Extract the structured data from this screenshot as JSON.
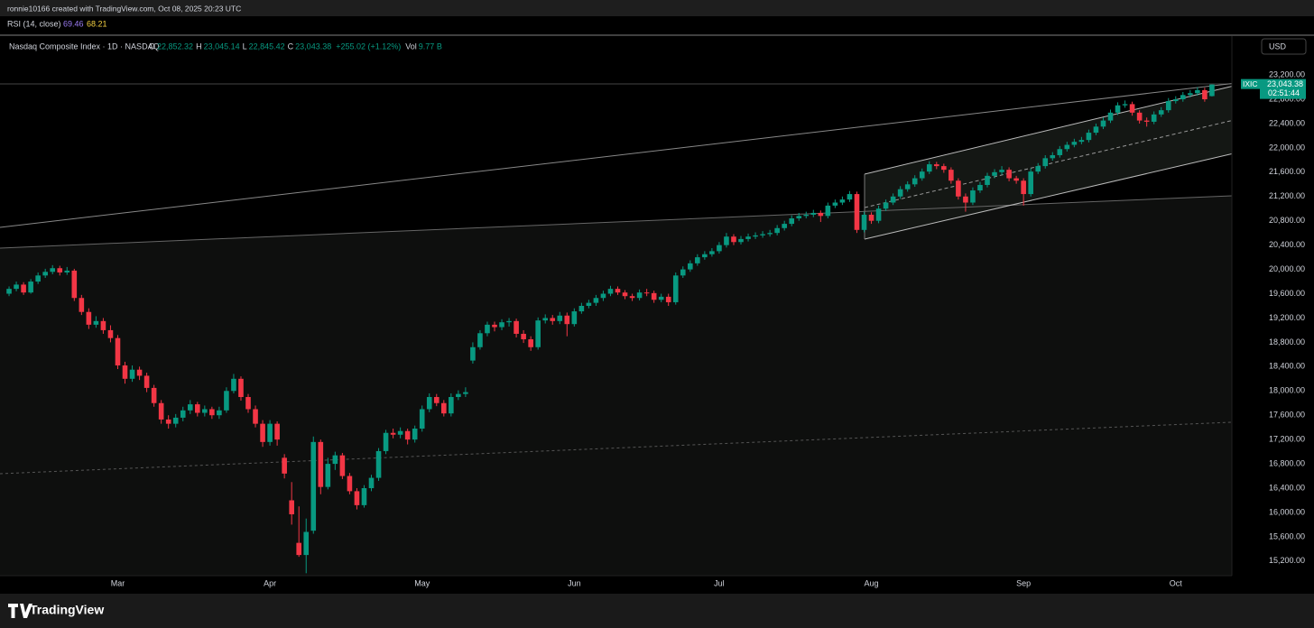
{
  "header": {
    "credit": "ronnie10166 created with TradingView.com, Oct 08, 2025 20:23 UTC"
  },
  "rsi": {
    "label": "RSI (14, close)",
    "values": [
      "69.46",
      "68.21"
    ]
  },
  "legend": {
    "symbol": "Nasdaq Composite Index · 1D · NASDAQ",
    "fields": [
      {
        "key": "O",
        "text": "22,852.32"
      },
      {
        "key": "H",
        "text": "23,045.14"
      },
      {
        "key": "L",
        "text": "22,845.42"
      },
      {
        "key": "C",
        "text": "23,043.38"
      }
    ],
    "change": "+255.02 (+1.12%)",
    "volume_key": "Vol",
    "volume": "9.77 B"
  },
  "currency": "USD",
  "price_tag": {
    "ticker": "IXIC",
    "price": "23,043.38",
    "countdown": "02:51:44"
  },
  "footer": {
    "brand": "TradingView"
  },
  "chart_data": {
    "type": "candlestick",
    "up_color": "#089981",
    "down_color": "#f23645",
    "xlim": [
      -1.25,
      168.75
    ],
    "xticks": [
      {
        "value": 15,
        "label": "Mar"
      },
      {
        "value": 36,
        "label": "Apr"
      },
      {
        "value": 57,
        "label": "May"
      },
      {
        "value": 78,
        "label": "Jun"
      },
      {
        "value": 98,
        "label": "Jul"
      },
      {
        "value": 119,
        "label": "Aug"
      },
      {
        "value": 140,
        "label": "Sep"
      },
      {
        "value": 161,
        "label": "Oct"
      }
    ],
    "ylim": [
      14960,
      23810
    ],
    "yticks": [
      {
        "value": 15200,
        "label": "15,200.00"
      },
      {
        "value": 15600,
        "label": "15,600.00"
      },
      {
        "value": 16000,
        "label": "16,000.00"
      },
      {
        "value": 16400,
        "label": "16,400.00"
      },
      {
        "value": 16800,
        "label": "16,800.00"
      },
      {
        "value": 17200,
        "label": "17,200.00"
      },
      {
        "value": 17600,
        "label": "17,600.00"
      },
      {
        "value": 18000,
        "label": "18,000.00"
      },
      {
        "value": 18400,
        "label": "18,400.00"
      },
      {
        "value": 18800,
        "label": "18,800.00"
      },
      {
        "value": 19200,
        "label": "19,200.00"
      },
      {
        "value": 19600,
        "label": "19,600.00"
      },
      {
        "value": 20000,
        "label": "20,000.00"
      },
      {
        "value": 20400,
        "label": "20,400.00"
      },
      {
        "value": 20800,
        "label": "20,800.00"
      },
      {
        "value": 21200,
        "label": "21,200.00"
      },
      {
        "value": 21600,
        "label": "21,600.00"
      },
      {
        "value": 22000,
        "label": "22,000.00"
      },
      {
        "value": 22400,
        "label": "22,400.00"
      },
      {
        "value": 22800,
        "label": "22,800.00"
      },
      {
        "value": 23200,
        "label": "23,200.00"
      }
    ],
    "ohlc": [
      [
        19600,
        19720,
        19560,
        19680
      ],
      [
        19680,
        19800,
        19640,
        19750
      ],
      [
        19750,
        19790,
        19580,
        19620
      ],
      [
        19620,
        19840,
        19600,
        19800
      ],
      [
        19800,
        19950,
        19760,
        19900
      ],
      [
        19900,
        20010,
        19860,
        19960
      ],
      [
        19960,
        20070,
        19920,
        20020
      ],
      [
        20020,
        20060,
        19900,
        19950
      ],
      [
        19950,
        20040,
        19910,
        19980
      ],
      [
        19980,
        20010,
        19480,
        19530
      ],
      [
        19530,
        19580,
        19250,
        19300
      ],
      [
        19300,
        19360,
        19020,
        19090
      ],
      [
        19090,
        19230,
        19040,
        19150
      ],
      [
        19150,
        19200,
        18940,
        19000
      ],
      [
        19000,
        19080,
        18800,
        18870
      ],
      [
        18870,
        18920,
        18360,
        18420
      ],
      [
        18420,
        18480,
        18120,
        18200
      ],
      [
        18200,
        18420,
        18150,
        18350
      ],
      [
        18350,
        18400,
        18180,
        18250
      ],
      [
        18250,
        18300,
        17980,
        18050
      ],
      [
        18050,
        18100,
        17740,
        17800
      ],
      [
        17800,
        17850,
        17460,
        17530
      ],
      [
        17530,
        17600,
        17380,
        17460
      ],
      [
        17460,
        17620,
        17400,
        17560
      ],
      [
        17560,
        17740,
        17500,
        17680
      ],
      [
        17680,
        17850,
        17620,
        17780
      ],
      [
        17780,
        17820,
        17580,
        17640
      ],
      [
        17640,
        17760,
        17580,
        17700
      ],
      [
        17700,
        17740,
        17540,
        17600
      ],
      [
        17600,
        17740,
        17540,
        17680
      ],
      [
        17680,
        18060,
        17640,
        18000
      ],
      [
        18000,
        18280,
        17960,
        18200
      ],
      [
        18200,
        18240,
        17840,
        17900
      ],
      [
        17900,
        17950,
        17640,
        17700
      ],
      [
        17700,
        17760,
        17400,
        17460
      ],
      [
        17460,
        17520,
        17080,
        17160
      ],
      [
        17160,
        17520,
        17100,
        17460
      ],
      [
        17460,
        17500,
        17100,
        17200
      ],
      [
        16900,
        16960,
        16560,
        16640
      ],
      [
        16200,
        16500,
        15800,
        15970
      ],
      [
        15500,
        16100,
        15270,
        15300
      ],
      [
        15300,
        15900,
        15000,
        15680
      ],
      [
        15700,
        17250,
        15650,
        17160
      ],
      [
        17160,
        17200,
        16300,
        16420
      ],
      [
        16420,
        16900,
        16380,
        16800
      ],
      [
        16800,
        17000,
        16700,
        16940
      ],
      [
        16940,
        16980,
        16550,
        16600
      ],
      [
        16600,
        16650,
        16300,
        16350
      ],
      [
        16350,
        16400,
        16050,
        16120
      ],
      [
        16120,
        16450,
        16080,
        16400
      ],
      [
        16400,
        16620,
        16350,
        16570
      ],
      [
        16570,
        17060,
        16520,
        17010
      ],
      [
        17010,
        17360,
        16960,
        17310
      ],
      [
        17310,
        17380,
        17220,
        17280
      ],
      [
        17280,
        17400,
        17220,
        17340
      ],
      [
        17340,
        17380,
        17120,
        17200
      ],
      [
        17200,
        17430,
        17150,
        17380
      ],
      [
        17380,
        17760,
        17330,
        17700
      ],
      [
        17700,
        17960,
        17650,
        17900
      ],
      [
        17900,
        17950,
        17750,
        17800
      ],
      [
        17800,
        17850,
        17580,
        17630
      ],
      [
        17630,
        17960,
        17580,
        17900
      ],
      [
        17900,
        18010,
        17850,
        17950
      ],
      [
        17950,
        18060,
        17900,
        17980
      ],
      [
        18500,
        18800,
        18450,
        18720
      ],
      [
        18720,
        19000,
        18680,
        18950
      ],
      [
        18950,
        19140,
        18900,
        19090
      ],
      [
        19090,
        19140,
        18980,
        19050
      ],
      [
        19050,
        19180,
        19000,
        19130
      ],
      [
        19130,
        19200,
        19060,
        19150
      ],
      [
        19150,
        19190,
        18880,
        18940
      ],
      [
        18940,
        19000,
        18790,
        18850
      ],
      [
        18850,
        18900,
        18660,
        18720
      ],
      [
        18720,
        19210,
        18680,
        19160
      ],
      [
        19160,
        19260,
        19110,
        19200
      ],
      [
        19200,
        19250,
        19090,
        19150
      ],
      [
        19150,
        19300,
        19100,
        19240
      ],
      [
        19240,
        19290,
        18900,
        19100
      ],
      [
        19100,
        19360,
        19060,
        19310
      ],
      [
        19310,
        19450,
        19270,
        19400
      ],
      [
        19400,
        19500,
        19360,
        19450
      ],
      [
        19450,
        19580,
        19400,
        19530
      ],
      [
        19530,
        19650,
        19480,
        19600
      ],
      [
        19600,
        19730,
        19560,
        19680
      ],
      [
        19680,
        19720,
        19580,
        19620
      ],
      [
        19620,
        19660,
        19510,
        19560
      ],
      [
        19560,
        19600,
        19480,
        19530
      ],
      [
        19530,
        19670,
        19490,
        19620
      ],
      [
        19620,
        19680,
        19560,
        19610
      ],
      [
        19610,
        19650,
        19450,
        19500
      ],
      [
        19500,
        19600,
        19460,
        19550
      ],
      [
        19550,
        19600,
        19400,
        19460
      ],
      [
        19460,
        19950,
        19420,
        19900
      ],
      [
        19900,
        20050,
        19860,
        20000
      ],
      [
        20000,
        20150,
        19960,
        20100
      ],
      [
        20100,
        20250,
        20060,
        20200
      ],
      [
        20200,
        20300,
        20160,
        20250
      ],
      [
        20250,
        20350,
        20210,
        20300
      ],
      [
        20300,
        20450,
        20260,
        20400
      ],
      [
        20400,
        20600,
        20360,
        20540
      ],
      [
        20540,
        20580,
        20400,
        20450
      ],
      [
        20450,
        20550,
        20410,
        20500
      ],
      [
        20500,
        20590,
        20460,
        20540
      ],
      [
        20540,
        20610,
        20500,
        20560
      ],
      [
        20560,
        20630,
        20520,
        20580
      ],
      [
        20580,
        20650,
        20540,
        20600
      ],
      [
        20600,
        20730,
        20560,
        20680
      ],
      [
        20680,
        20800,
        20640,
        20750
      ],
      [
        20750,
        20890,
        20710,
        20840
      ],
      [
        20840,
        20930,
        20800,
        20880
      ],
      [
        20880,
        20950,
        20840,
        20900
      ],
      [
        20900,
        20980,
        20860,
        20930
      ],
      [
        20930,
        20970,
        20780,
        20880
      ],
      [
        20880,
        21100,
        20840,
        21050
      ],
      [
        21050,
        21150,
        21010,
        21100
      ],
      [
        21100,
        21200,
        21060,
        21150
      ],
      [
        21150,
        21290,
        21110,
        21240
      ],
      [
        21240,
        21280,
        20600,
        20650
      ],
      [
        20650,
        20950,
        20610,
        20900
      ],
      [
        20900,
        20940,
        20750,
        20800
      ],
      [
        20800,
        21050,
        20760,
        21000
      ],
      [
        21000,
        21150,
        20960,
        21100
      ],
      [
        21100,
        21250,
        21060,
        21200
      ],
      [
        21200,
        21370,
        21160,
        21320
      ],
      [
        21320,
        21450,
        21280,
        21400
      ],
      [
        21400,
        21550,
        21360,
        21500
      ],
      [
        21500,
        21660,
        21460,
        21610
      ],
      [
        21610,
        21780,
        21570,
        21730
      ],
      [
        21730,
        21770,
        21650,
        21700
      ],
      [
        21700,
        21740,
        21590,
        21640
      ],
      [
        21640,
        21680,
        21410,
        21460
      ],
      [
        21460,
        21500,
        21150,
        21200
      ],
      [
        21200,
        21250,
        20950,
        21100
      ],
      [
        21100,
        21350,
        21060,
        21300
      ],
      [
        21300,
        21440,
        21260,
        21390
      ],
      [
        21390,
        21590,
        21350,
        21540
      ],
      [
        21540,
        21650,
        21500,
        21600
      ],
      [
        21600,
        21700,
        21560,
        21640
      ],
      [
        21640,
        21680,
        21450,
        21500
      ],
      [
        21500,
        21540,
        21410,
        21460
      ],
      [
        21460,
        21500,
        21050,
        21240
      ],
      [
        21240,
        21660,
        21200,
        21610
      ],
      [
        21610,
        21750,
        21570,
        21700
      ],
      [
        21700,
        21880,
        21660,
        21830
      ],
      [
        21830,
        21930,
        21790,
        21880
      ],
      [
        21880,
        22030,
        21840,
        21980
      ],
      [
        21980,
        22100,
        21940,
        22050
      ],
      [
        22050,
        22150,
        22010,
        22100
      ],
      [
        22100,
        22180,
        22060,
        22130
      ],
      [
        22130,
        22300,
        22090,
        22250
      ],
      [
        22250,
        22400,
        22210,
        22350
      ],
      [
        22350,
        22500,
        22310,
        22450
      ],
      [
        22450,
        22630,
        22410,
        22580
      ],
      [
        22580,
        22750,
        22540,
        22700
      ],
      [
        22700,
        22780,
        22660,
        22720
      ],
      [
        22720,
        22760,
        22530,
        22580
      ],
      [
        22580,
        22620,
        22400,
        22450
      ],
      [
        22450,
        22500,
        22350,
        22430
      ],
      [
        22430,
        22600,
        22390,
        22550
      ],
      [
        22550,
        22670,
        22510,
        22620
      ],
      [
        22620,
        22820,
        22580,
        22770
      ],
      [
        22770,
        22850,
        22730,
        22800
      ],
      [
        22800,
        22920,
        22760,
        22870
      ],
      [
        22870,
        22950,
        22830,
        22900
      ],
      [
        22900,
        23000,
        22860,
        22950
      ],
      [
        22950,
        22990,
        22760,
        22800
      ],
      [
        22852.32,
        23045.14,
        22845.42,
        23043.38
      ]
    ]
  }
}
